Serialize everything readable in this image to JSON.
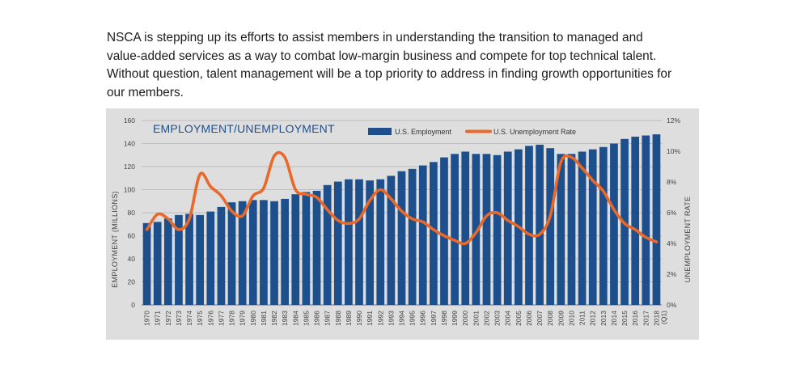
{
  "intro_text": "NSCA is stepping up its efforts to assist members in understanding the transition to managed and value-added services as a way to combat low-margin business and compete for top technical talent. Without question, talent management will be a top priority to address in finding growth opportunities for our members.",
  "colors": {
    "bar": "#1d4f8c",
    "line": "#e8692a",
    "panel": "#dedede"
  },
  "chart_data": {
    "type": "bar",
    "title": "EMPLOYMENT/UNEMPLOYMENT",
    "ylabel": "EMPLOYMENT (MILLIONS)",
    "y2label": "UNEMPLOYMENT RATE",
    "ylim": [
      0,
      160
    ],
    "y2lim": [
      0,
      12
    ],
    "yticks": [
      "0",
      "20",
      "40",
      "60",
      "80",
      "100",
      "120",
      "140",
      "160"
    ],
    "y2ticks": [
      "0%",
      "2%",
      "4%",
      "6%",
      "8%",
      "10%",
      "12%"
    ],
    "categories": [
      "1970",
      "1971",
      "1972",
      "1973",
      "1974",
      "1975",
      "1976",
      "1977",
      "1978",
      "1979",
      "1980",
      "1981",
      "1982",
      "1983",
      "1984",
      "1985",
      "1986",
      "1987",
      "1988",
      "1989",
      "1990",
      "1991",
      "1992",
      "1993",
      "1994",
      "1995",
      "1996",
      "1997",
      "1998",
      "1999",
      "2000",
      "2001",
      "2002",
      "2003",
      "2004",
      "2005",
      "2006",
      "2007",
      "2008",
      "2009",
      "2010",
      "2011",
      "2012",
      "2013",
      "2014",
      "2015",
      "2016",
      "2017",
      "2018"
    ],
    "last_category_suffix": "(Q1)",
    "legend_position": "top-right",
    "grid": true,
    "series": [
      {
        "name": "U.S. Employment",
        "kind": "bar",
        "axis": "left",
        "values": [
          71,
          72,
          75,
          78,
          79,
          78,
          81,
          85,
          89,
          90,
          91,
          91,
          90,
          92,
          96,
          98,
          99,
          104,
          107,
          109,
          109,
          108,
          109,
          112,
          116,
          118,
          121,
          124,
          128,
          131,
          133,
          131,
          131,
          130,
          133,
          135,
          138,
          139,
          136,
          131,
          131,
          133,
          135,
          137,
          140,
          144,
          146,
          147,
          148
        ]
      },
      {
        "name": "U.S. Unemployment Rate",
        "kind": "line",
        "axis": "right",
        "values": [
          4.9,
          5.9,
          5.6,
          4.9,
          5.6,
          8.5,
          7.7,
          7.1,
          6.1,
          5.8,
          7.1,
          7.6,
          9.7,
          9.6,
          7.5,
          7.2,
          7.0,
          6.2,
          5.5,
          5.3,
          5.6,
          6.8,
          7.5,
          6.9,
          6.1,
          5.6,
          5.4,
          4.9,
          4.5,
          4.2,
          4.0,
          4.7,
          5.8,
          6.0,
          5.5,
          5.1,
          4.6,
          4.6,
          5.8,
          9.3,
          9.6,
          8.9,
          8.1,
          7.4,
          6.2,
          5.3,
          4.9,
          4.4,
          4.1
        ]
      }
    ]
  }
}
